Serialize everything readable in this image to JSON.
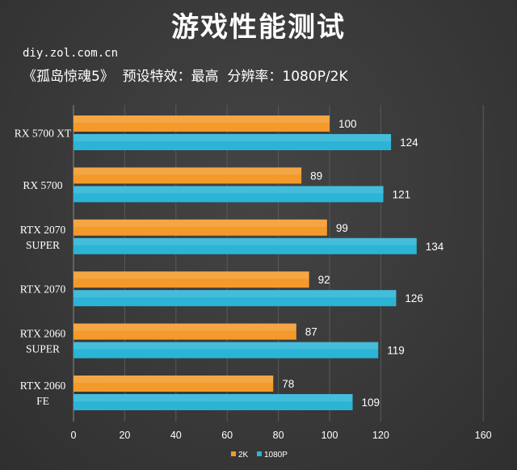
{
  "chart_data": {
    "type": "bar",
    "orientation": "horizontal",
    "title": "游戏性能测试",
    "source": "diy.zol.com.cn",
    "subtitle": "《孤岛惊魂5》  预设特效：最高  分辨率：1080P/2K",
    "categories": [
      [
        "RX 5700 XT"
      ],
      [
        "RX 5700"
      ],
      [
        "RTX 2070",
        "SUPER"
      ],
      [
        "RTX 2070"
      ],
      [
        "RTX 2060",
        "SUPER"
      ],
      [
        "RTX 2060",
        "FE"
      ]
    ],
    "series": [
      {
        "name": "2K",
        "color": "#f39a2b",
        "values": [
          100,
          89,
          99,
          92,
          87,
          78
        ]
      },
      {
        "name": "1080P",
        "color": "#2bb4d6",
        "values": [
          124,
          121,
          134,
          126,
          119,
          109
        ]
      }
    ],
    "xlim": [
      0,
      160
    ],
    "ticks": [
      "0",
      "20",
      "40",
      "60",
      "80",
      "100",
      "120",
      "160"
    ],
    "tick_values": [
      0,
      20,
      40,
      60,
      80,
      100,
      120,
      160
    ],
    "grid": true,
    "legend_position": "bottom"
  }
}
